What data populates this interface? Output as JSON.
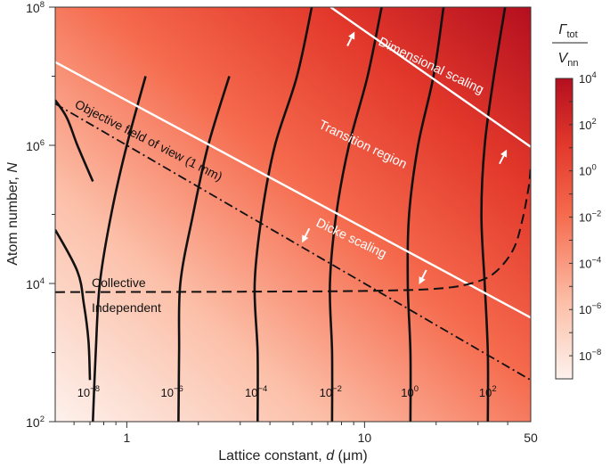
{
  "chart_data": {
    "type": "heatmap",
    "title": "",
    "xlabel_parts": [
      "Lattice constant, ",
      "d",
      " (μm)"
    ],
    "ylabel_parts": [
      "Atom number, ",
      "N"
    ],
    "x_scale": "log",
    "y_scale": "log",
    "xlim": [
      0.5,
      50
    ],
    "ylim": [
      100,
      100000000
    ],
    "x_ticks": [
      {
        "value": 1,
        "label": "1"
      },
      {
        "value": 10,
        "label": "10"
      },
      {
        "value": 50,
        "label": "50"
      }
    ],
    "y_ticks": [
      {
        "value": 100,
        "base": "10",
        "exp": "2"
      },
      {
        "value": 10000,
        "base": "10",
        "exp": "4"
      },
      {
        "value": 1000000,
        "base": "10",
        "exp": "6"
      },
      {
        "value": 100000000,
        "base": "10",
        "exp": "8"
      }
    ],
    "colorbar": {
      "title_numerator": "Γ",
      "title_numerator_sub": "tot",
      "title_denominator": "V",
      "title_denominator_sub": "nn",
      "scale": "log",
      "range": [
        1e-09,
        10000
      ],
      "ticks": [
        {
          "value": 10000,
          "base": "10",
          "exp": "4"
        },
        {
          "value": 100,
          "base": "10",
          "exp": "2"
        },
        {
          "value": 1,
          "base": "10",
          "exp": "0"
        },
        {
          "value": 0.01,
          "base": "10",
          "exp": "−2"
        },
        {
          "value": 0.0001,
          "base": "10",
          "exp": "−4"
        },
        {
          "value": 1e-06,
          "base": "10",
          "exp": "−6"
        },
        {
          "value": 1e-08,
          "base": "10",
          "exp": "−8"
        }
      ],
      "colors": [
        "#fdf1ec",
        "#fcc0a9",
        "#f56a4d",
        "#e2382b",
        "#b40f1f"
      ]
    },
    "contours": [
      {
        "base": "10",
        "exp": "−8",
        "label_x": 0.69,
        "points": [
          [
            0.72,
            100
          ],
          [
            0.74,
            1000
          ],
          [
            0.77,
            10000
          ],
          [
            0.86,
            100000
          ],
          [
            1.0,
            1000000
          ],
          [
            1.2,
            10000000
          ]
        ]
      },
      {
        "base": "10",
        "exp": "−6",
        "label_x": 1.55,
        "points": [
          [
            1.65,
            100
          ],
          [
            1.66,
            1000
          ],
          [
            1.68,
            10000
          ],
          [
            1.9,
            100000
          ],
          [
            2.2,
            1000000
          ],
          [
            2.7,
            10000000
          ]
        ]
      },
      {
        "base": "10",
        "exp": "−4",
        "label_x": 3.5,
        "points": [
          [
            3.55,
            100
          ],
          [
            3.55,
            1000
          ],
          [
            3.45,
            10000
          ],
          [
            3.7,
            100000
          ],
          [
            4.2,
            1000000
          ],
          [
            5.2,
            10000000
          ],
          [
            6.0,
            100000000
          ]
        ]
      },
      {
        "base": "10",
        "exp": "−2",
        "label_x": 7.2,
        "points": [
          [
            7.3,
            100
          ],
          [
            7.3,
            1000
          ],
          [
            7.15,
            10000
          ],
          [
            7.6,
            100000
          ],
          [
            8.6,
            1000000
          ],
          [
            10.3,
            10000000
          ],
          [
            11.8,
            100000000
          ]
        ]
      },
      {
        "base": "10",
        "exp": "0",
        "label_x": 15.5,
        "points": [
          [
            15.6,
            100
          ],
          [
            15.6,
            1000
          ],
          [
            15.2,
            10000
          ],
          [
            15.4,
            100000
          ],
          [
            16.8,
            1000000
          ],
          [
            19.5,
            10000000
          ],
          [
            21.5,
            100000000
          ]
        ]
      },
      {
        "base": "10",
        "exp": "2",
        "label_x": 33,
        "points": [
          [
            33,
            100
          ],
          [
            33,
            1000
          ],
          [
            32,
            10000
          ],
          [
            31,
            100000
          ],
          [
            32,
            1000000
          ],
          [
            35,
            10000000
          ],
          [
            39,
            100000000
          ]
        ]
      },
      {
        "points": [
          [
            0.5,
            60000
          ],
          [
            0.62,
            15000
          ],
          [
            0.66,
            5000
          ],
          [
            0.69,
            1500
          ],
          [
            0.7,
            400
          ]
        ]
      },
      {
        "points": [
          [
            0.5,
            4500000
          ],
          [
            0.56,
            2500000
          ],
          [
            0.62,
            1000000
          ],
          [
            0.72,
            300000
          ]
        ]
      }
    ],
    "collective_boundary": {
      "label_above": "Collective",
      "label_below": "Independent",
      "points": [
        [
          0.5,
          7500
        ],
        [
          3,
          7600
        ],
        [
          10,
          7800
        ],
        [
          20,
          8400
        ],
        [
          28,
          10000
        ],
        [
          35,
          14000
        ],
        [
          42,
          30000
        ],
        [
          46,
          80000
        ],
        [
          49,
          250000
        ],
        [
          50,
          500000
        ]
      ]
    },
    "field_of_view": {
      "label": "Objective field of view (1 mm)",
      "points": [
        [
          0.5,
          4000000
        ],
        [
          50,
          400
        ]
      ]
    },
    "white_lines": [
      {
        "points": [
          [
            0.5,
            16000000
          ],
          [
            50,
            3200
          ]
        ]
      },
      {
        "points": [
          [
            7.2,
            100000000
          ],
          [
            50,
            950000
          ]
        ]
      }
    ],
    "region_labels": [
      "Dimensional scaling",
      "Transition region",
      "Dicke scaling"
    ]
  }
}
